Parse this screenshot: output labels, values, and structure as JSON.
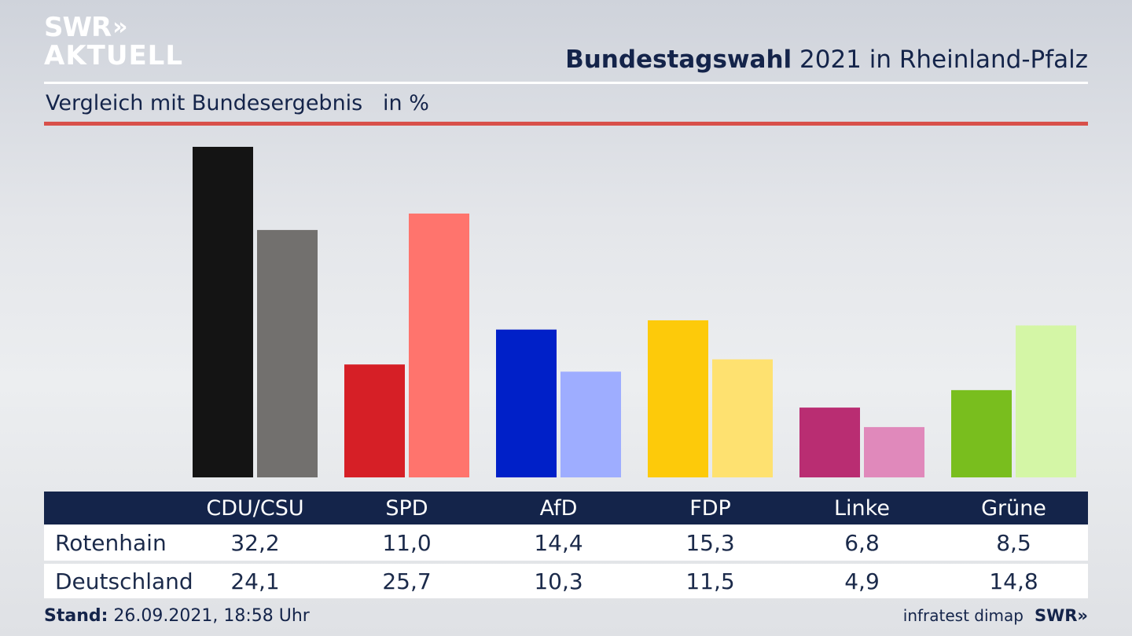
{
  "logo": {
    "line1": "SWR",
    "chevrons": "»",
    "line2": "AKTUELL"
  },
  "header": {
    "title_bold": "Bundestagswahl",
    "title_rest": " 2021 in Rheinland-Pfalz"
  },
  "subtitle": "Vergleich mit Bundesergebnis   in %",
  "footer": {
    "stand_label": "Stand:",
    "stand_value": " 26.09.2021, 18:58 Uhr",
    "source": "infratest dimap",
    "brand": "SWR»"
  },
  "chart_data": {
    "type": "bar",
    "categories": [
      "CDU/CSU",
      "SPD",
      "AfD",
      "FDP",
      "Linke",
      "Grüne"
    ],
    "series": [
      {
        "name": "Rotenhain",
        "values": [
          32.2,
          11.0,
          14.4,
          15.3,
          6.8,
          8.5
        ]
      },
      {
        "name": "Deutschland",
        "values": [
          24.1,
          25.7,
          10.3,
          11.5,
          4.9,
          14.8
        ]
      }
    ],
    "colors_primary": [
      "#141414",
      "#d61f26",
      "#0020c8",
      "#fdca0a",
      "#b92d72",
      "#79be1e"
    ],
    "colors_secondary": [
      "#72706e",
      "#ff746d",
      "#9eadff",
      "#fee170",
      "#e089bb",
      "#d4f6a6"
    ],
    "ylim": [
      0,
      33
    ],
    "grid": false
  },
  "table": {
    "headers": [
      "CDU/CSU",
      "SPD",
      "AfD",
      "FDP",
      "Linke",
      "Grüne"
    ],
    "rows": [
      {
        "label": "Rotenhain",
        "values": [
          "32,2",
          "11,0",
          "14,4",
          "15,3",
          "6,8",
          "8,5"
        ]
      },
      {
        "label": "Deutschland",
        "values": [
          "24,1",
          "25,7",
          "10,3",
          "11,5",
          "4,9",
          "14,8"
        ]
      }
    ]
  }
}
